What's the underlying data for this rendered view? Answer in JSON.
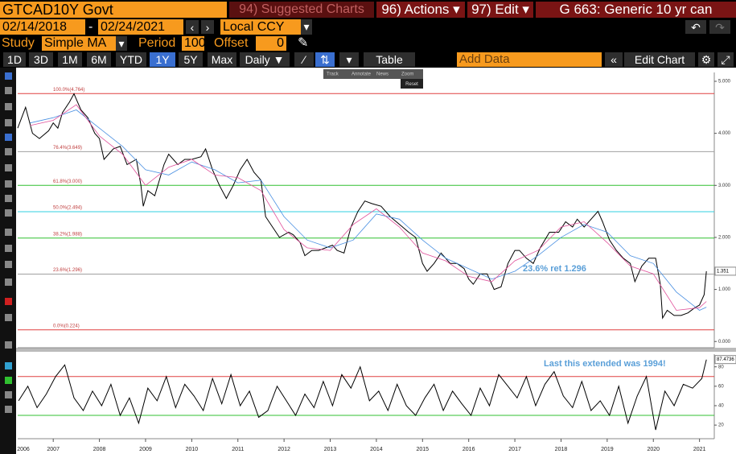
{
  "ui": {
    "ticker": "GTCAD10Y Govt",
    "suggested": "94) Suggested Charts",
    "actions": "96) Actions ▾",
    "edit": "97) Edit ▾",
    "security": "G 663: Generic 10 yr can",
    "start_date": "02/14/2018",
    "date_sep": "-",
    "end_date": "02/24/2021",
    "currency": "Local CCY",
    "study_label": "Study",
    "study": "Simple MA",
    "period_label": "Period",
    "period": 100,
    "offset_label": "Offset",
    "offset": 0,
    "ranges": [
      "1D",
      "3D",
      "1M",
      "6M",
      "YTD",
      "1Y",
      "5Y",
      "Max"
    ],
    "frequency": "Daily ▼",
    "table": "Table",
    "add_data": "Add Data",
    "edit_chart": "Edit Chart",
    "float_tools": [
      "Track",
      "Annotate",
      "News",
      "Zoom"
    ],
    "reset": "Reset"
  },
  "chart_data": [
    {
      "type": "line",
      "annotation": "23.6% ret 1.296",
      "last_value": 1.351,
      "xlim": [
        2006.23,
        2021.32
      ],
      "ylim": [
        -0.12,
        5.17
      ],
      "yticks": [
        {
          "value": 0,
          "label": "0.000"
        },
        {
          "value": 1,
          "label": "1.000"
        },
        {
          "value": 2,
          "label": "2.000"
        },
        {
          "value": 3,
          "label": "3.000"
        },
        {
          "value": 4,
          "label": "4.000"
        },
        {
          "value": 5,
          "label": "5.000"
        }
      ],
      "levels": [
        {
          "label": "100.0%(4.764)",
          "value": 4.764,
          "color": "#e04040"
        },
        {
          "label": "76.4%(3.649)",
          "value": 3.649,
          "color": "#a0a0a0"
        },
        {
          "label": "61.8%(3.000)",
          "value": 3.0,
          "color": "#30c030"
        },
        {
          "label": "50.0%(2.494)",
          "value": 2.494,
          "color": "#30d0e0"
        },
        {
          "label": "38.2%(1.988)",
          "value": 1.988,
          "color": "#30c030"
        },
        {
          "label": "23.6%(1.296)",
          "value": 1.296,
          "color": "#a0a0a0"
        },
        {
          "label": "0.0%(0.224)",
          "value": 0.224,
          "color": "#e04040"
        }
      ],
      "series": [
        {
          "color": "#000000",
          "x": [
            2006.23,
            2006.4,
            2006.55,
            2006.7,
            2006.9,
            2007.0,
            2007.1,
            2007.2,
            2007.35,
            2007.45,
            2007.6,
            2007.75,
            2007.9,
            2008.0,
            2008.1,
            2008.3,
            2008.45,
            2008.6,
            2008.8,
            2008.9,
            2008.95,
            2009.05,
            2009.2,
            2009.4,
            2009.5,
            2009.7,
            2009.85,
            2010.0,
            2010.2,
            2010.3,
            2010.45,
            2010.6,
            2010.75,
            2010.9,
            2011.05,
            2011.2,
            2011.35,
            2011.5,
            2011.6,
            2011.75,
            2011.9,
            2012.1,
            2012.2,
            2012.35,
            2012.45,
            2012.6,
            2012.75,
            2012.9,
            2013.05,
            2013.15,
            2013.3,
            2013.45,
            2013.6,
            2013.75,
            2013.9,
            2014.1,
            2014.3,
            2014.5,
            2014.7,
            2014.85,
            2015.0,
            2015.1,
            2015.25,
            2015.4,
            2015.5,
            2015.6,
            2015.75,
            2015.9,
            2016.0,
            2016.1,
            2016.25,
            2016.4,
            2016.55,
            2016.7,
            2016.85,
            2017.0,
            2017.1,
            2017.25,
            2017.4,
            2017.55,
            2017.75,
            2017.95,
            2018.1,
            2018.25,
            2018.35,
            2018.5,
            2018.65,
            2018.8,
            2018.9,
            2019.05,
            2019.2,
            2019.35,
            2019.5,
            2019.6,
            2019.75,
            2019.9,
            2020.05,
            2020.15,
            2020.2,
            2020.3,
            2020.45,
            2020.6,
            2020.75,
            2020.9,
            2021.0,
            2021.1,
            2021.15
          ],
          "values": [
            4.1,
            4.5,
            4.0,
            3.9,
            4.05,
            4.2,
            4.1,
            4.4,
            4.6,
            4.76,
            4.45,
            4.3,
            4.0,
            3.9,
            3.5,
            3.7,
            3.75,
            3.4,
            3.5,
            3.0,
            2.6,
            2.9,
            2.8,
            3.4,
            3.6,
            3.4,
            3.5,
            3.5,
            3.55,
            3.7,
            3.3,
            3.0,
            2.75,
            3.0,
            3.3,
            3.5,
            3.25,
            3.1,
            2.4,
            2.2,
            2.0,
            2.1,
            2.05,
            1.9,
            1.65,
            1.75,
            1.75,
            1.8,
            1.85,
            1.75,
            1.7,
            2.2,
            2.5,
            2.7,
            2.65,
            2.6,
            2.4,
            2.25,
            2.1,
            2.0,
            1.5,
            1.35,
            1.5,
            1.7,
            1.6,
            1.5,
            1.5,
            1.4,
            1.2,
            1.1,
            1.3,
            1.3,
            1.0,
            1.05,
            1.5,
            1.75,
            1.75,
            1.6,
            1.5,
            1.8,
            2.1,
            2.1,
            2.3,
            2.2,
            2.35,
            2.2,
            2.35,
            2.5,
            2.3,
            1.95,
            1.75,
            1.6,
            1.5,
            1.15,
            1.45,
            1.6,
            1.6,
            1.1,
            0.45,
            0.6,
            0.5,
            0.5,
            0.55,
            0.65,
            0.7,
            0.9,
            1.351
          ]
        },
        {
          "color": "#4a90e2",
          "x": [
            2006.5,
            2007.0,
            2007.5,
            2008.0,
            2008.5,
            2009.0,
            2009.5,
            2010.0,
            2010.5,
            2011.0,
            2011.5,
            2012.0,
            2012.5,
            2013.0,
            2013.5,
            2014.0,
            2014.5,
            2015.0,
            2015.5,
            2016.0,
            2016.5,
            2017.0,
            2017.5,
            2018.0,
            2018.5,
            2019.0,
            2019.5,
            2020.0,
            2020.5,
            2021.0,
            2021.15
          ],
          "values": [
            4.2,
            4.3,
            4.45,
            4.1,
            3.75,
            3.3,
            3.2,
            3.45,
            3.3,
            3.05,
            3.1,
            2.4,
            1.95,
            1.8,
            1.95,
            2.45,
            2.35,
            1.95,
            1.6,
            1.4,
            1.2,
            1.35,
            1.65,
            2.0,
            2.25,
            2.1,
            1.65,
            1.5,
            0.95,
            0.6,
            0.66
          ]
        },
        {
          "color": "#e0509a",
          "x": [
            2006.5,
            2007.0,
            2007.5,
            2008.0,
            2008.5,
            2009.0,
            2009.5,
            2010.0,
            2010.5,
            2011.0,
            2011.5,
            2012.0,
            2012.5,
            2013.0,
            2013.5,
            2014.0,
            2014.5,
            2015.0,
            2015.5,
            2016.0,
            2016.5,
            2017.0,
            2017.5,
            2018.0,
            2018.5,
            2019.0,
            2019.5,
            2020.0,
            2020.5,
            2021.0,
            2021.15
          ],
          "values": [
            4.15,
            4.25,
            4.55,
            3.95,
            3.6,
            3.0,
            3.35,
            3.5,
            3.2,
            3.15,
            2.9,
            2.15,
            1.8,
            1.75,
            2.25,
            2.55,
            2.2,
            1.7,
            1.55,
            1.25,
            1.15,
            1.55,
            1.75,
            2.2,
            2.3,
            1.9,
            1.45,
            1.3,
            0.6,
            0.65,
            0.77
          ]
        }
      ]
    },
    {
      "type": "line",
      "annotation": "Last this extended was 1994!",
      "last_value": 87.4736,
      "xlim": [
        2006.23,
        2021.32
      ],
      "ylim": [
        6,
        93
      ],
      "xticks": [
        2006,
        2007,
        2008,
        2009,
        2010,
        2011,
        2012,
        2013,
        2014,
        2015,
        2016,
        2017,
        2018,
        2019,
        2020,
        2021
      ],
      "yticks": [
        20,
        40,
        60,
        80
      ],
      "levels": [
        {
          "value": 70,
          "color": "#e04040"
        },
        {
          "value": 30,
          "color": "#30c030"
        }
      ],
      "series": [
        {
          "color": "#000000",
          "x": [
            2006.25,
            2006.45,
            2006.65,
            2006.85,
            2007.05,
            2007.25,
            2007.45,
            2007.65,
            2007.85,
            2008.05,
            2008.25,
            2008.45,
            2008.65,
            2008.85,
            2009.05,
            2009.25,
            2009.45,
            2009.65,
            2009.85,
            2010.05,
            2010.25,
            2010.45,
            2010.65,
            2010.85,
            2011.05,
            2011.25,
            2011.45,
            2011.65,
            2011.85,
            2012.05,
            2012.25,
            2012.45,
            2012.65,
            2012.85,
            2013.05,
            2013.25,
            2013.45,
            2013.65,
            2013.85,
            2014.05,
            2014.25,
            2014.45,
            2014.65,
            2014.85,
            2015.05,
            2015.25,
            2015.45,
            2015.65,
            2015.85,
            2016.05,
            2016.25,
            2016.45,
            2016.65,
            2016.85,
            2017.05,
            2017.25,
            2017.45,
            2017.65,
            2017.85,
            2018.05,
            2018.25,
            2018.45,
            2018.65,
            2018.85,
            2019.05,
            2019.25,
            2019.45,
            2019.65,
            2019.85,
            2020.05,
            2020.25,
            2020.45,
            2020.65,
            2020.85,
            2021.05,
            2021.15
          ],
          "values": [
            45,
            60,
            38,
            52,
            70,
            82,
            48,
            35,
            55,
            40,
            62,
            30,
            48,
            22,
            58,
            45,
            70,
            38,
            62,
            50,
            35,
            68,
            42,
            72,
            40,
            55,
            28,
            35,
            60,
            45,
            30,
            52,
            38,
            65,
            40,
            72,
            58,
            80,
            45,
            55,
            35,
            62,
            40,
            30,
            48,
            62,
            35,
            55,
            42,
            30,
            58,
            40,
            72,
            60,
            48,
            70,
            40,
            62,
            75,
            50,
            38,
            65,
            35,
            45,
            30,
            60,
            22,
            50,
            70,
            15,
            55,
            40,
            62,
            58,
            68,
            87.4736
          ]
        }
      ]
    }
  ]
}
